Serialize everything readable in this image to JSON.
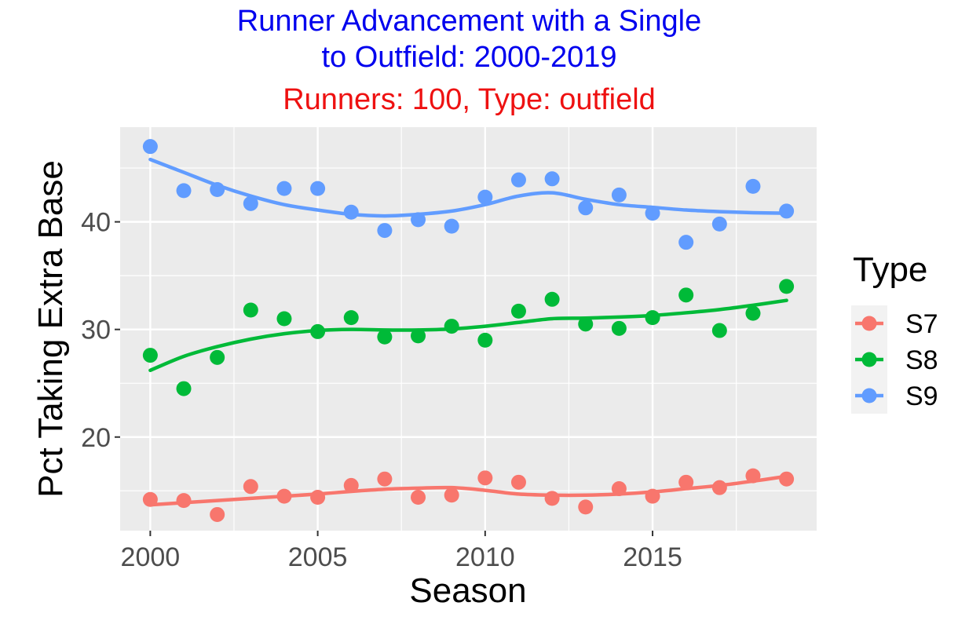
{
  "chart_data": {
    "type": "scatter",
    "title": "Runner Advancement with a Single",
    "title_line2": "to Outfield: 2000-2019",
    "subtitle": "Runners: 100, Type: outfield",
    "xlabel": "Season",
    "ylabel": "Pct Taking Extra Base",
    "xlim": [
      1999.1,
      2019.9
    ],
    "ylim": [
      11.3,
      48.8
    ],
    "x_ticks": [
      2000,
      2005,
      2010,
      2015
    ],
    "y_ticks": [
      20,
      30,
      40
    ],
    "grid": true,
    "legend": {
      "title": "Type",
      "position": "right"
    },
    "x": [
      2000,
      2001,
      2002,
      2003,
      2004,
      2005,
      2006,
      2007,
      2008,
      2009,
      2010,
      2011,
      2012,
      2013,
      2014,
      2015,
      2016,
      2017,
      2018,
      2019
    ],
    "series": [
      {
        "name": "S7",
        "color": "#F8766D",
        "values": [
          14.2,
          14.1,
          12.8,
          15.4,
          14.5,
          14.4,
          15.5,
          16.1,
          14.4,
          14.6,
          16.2,
          15.8,
          14.3,
          13.5,
          15.2,
          14.5,
          15.8,
          15.3,
          16.4,
          16.1
        ],
        "smooth": [
          13.7,
          13.9,
          14.1,
          14.3,
          14.5,
          14.7,
          14.95,
          15.15,
          15.25,
          15.3,
          15.05,
          14.7,
          14.6,
          14.6,
          14.7,
          14.9,
          15.2,
          15.5,
          15.9,
          16.35
        ]
      },
      {
        "name": "S8",
        "color": "#00BA38",
        "values": [
          27.6,
          24.5,
          27.4,
          31.8,
          31.0,
          29.8,
          31.1,
          29.3,
          29.4,
          30.3,
          29.0,
          31.7,
          32.8,
          30.5,
          30.1,
          31.1,
          33.2,
          29.9,
          31.5,
          34.0
        ],
        "smooth": [
          26.2,
          27.5,
          28.4,
          29.1,
          29.6,
          29.9,
          30.0,
          29.95,
          29.95,
          30.05,
          30.3,
          30.65,
          31.0,
          31.05,
          31.15,
          31.3,
          31.55,
          31.85,
          32.25,
          32.7
        ]
      },
      {
        "name": "S9",
        "color": "#619CFF",
        "values": [
          47.0,
          42.9,
          43.0,
          41.7,
          43.1,
          43.1,
          40.9,
          39.2,
          40.2,
          39.6,
          42.3,
          43.9,
          44.0,
          41.3,
          42.5,
          40.8,
          38.1,
          39.8,
          43.3,
          41.0
        ],
        "smooth": [
          45.8,
          44.6,
          43.4,
          42.4,
          41.6,
          41.1,
          40.7,
          40.55,
          40.7,
          41.0,
          41.6,
          42.4,
          42.7,
          42.1,
          41.6,
          41.35,
          41.1,
          40.95,
          40.85,
          40.8
        ]
      }
    ]
  }
}
